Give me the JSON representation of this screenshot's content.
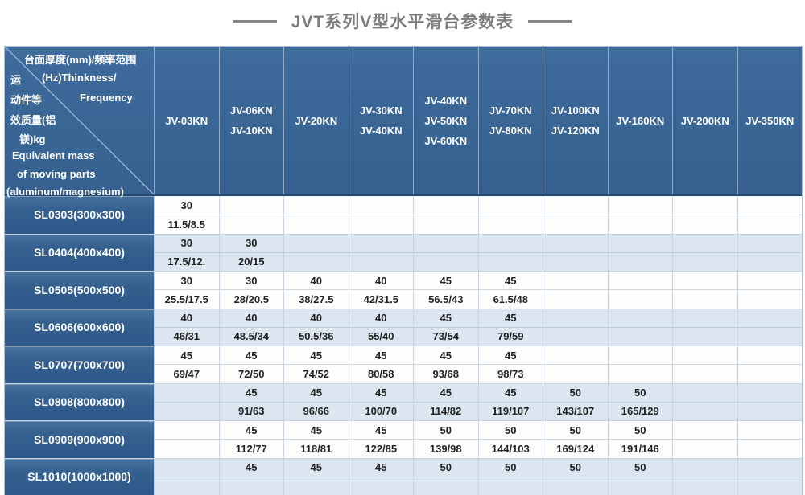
{
  "title": "JVT系列V型水平滑台参数表",
  "colors": {
    "header_blue": "#3A6795",
    "row_label_blue": "#35608F",
    "stripe_blue": "#DCE6F1",
    "stripe_white": "#FFFFFF",
    "title_gray": "#7D7D7D",
    "header_divider": "#26486E",
    "grid_line": "#C9D4E2",
    "data_text": "#222222"
  },
  "chart_data": {
    "type": "table",
    "title": "JVT系列V型水平滑台参数表",
    "corner_lines": [
      "台面厚度(mm)/频率范围",
      "运",
      "(Hz)Thinkness/",
      "动件等",
      "Frequency",
      "效质量(铝",
      "镁)kg",
      "Equivalent mass",
      "of moving parts",
      "(aluminum/magnesium)"
    ],
    "corner_meaning": {
      "top_right": "台面厚度(mm)/频率范围(Hz) Thinkness/Frequency",
      "bottom_left": "运动件等效质量(铝镁)kg Equivalent mass of moving parts (aluminum/magnesium)"
    },
    "columns": [
      [
        "JV-03KN"
      ],
      [
        "JV-06KN",
        "JV-10KN"
      ],
      [
        "JV-20KN"
      ],
      [
        "JV-30KN",
        "JV-40KN"
      ],
      [
        "JV-40KN",
        "JV-50KN",
        "JV-60KN"
      ],
      [
        "JV-70KN",
        "JV-80KN"
      ],
      [
        "JV-100KN",
        "JV-120KN"
      ],
      [
        "JV-160KN"
      ],
      [
        "JV-200KN"
      ],
      [
        "JV-350KN"
      ]
    ],
    "rows": [
      {
        "label": "SL0303(300x300)",
        "cells": [
          [
            "30",
            "11.5/8.5"
          ],
          [
            "",
            ""
          ],
          [
            "",
            ""
          ],
          [
            "",
            ""
          ],
          [
            "",
            ""
          ],
          [
            "",
            ""
          ],
          [
            "",
            ""
          ],
          [
            "",
            ""
          ],
          [
            "",
            ""
          ],
          [
            "",
            ""
          ]
        ]
      },
      {
        "label": "SL0404(400x400)",
        "cells": [
          [
            "30",
            "17.5/12."
          ],
          [
            "30",
            "20/15"
          ],
          [
            "",
            ""
          ],
          [
            "",
            ""
          ],
          [
            "",
            ""
          ],
          [
            "",
            ""
          ],
          [
            "",
            ""
          ],
          [
            "",
            ""
          ],
          [
            "",
            ""
          ],
          [
            "",
            ""
          ]
        ]
      },
      {
        "label": "SL0505(500x500)",
        "cells": [
          [
            "30",
            "25.5/17.5"
          ],
          [
            "30",
            "28/20.5"
          ],
          [
            "40",
            "38/27.5"
          ],
          [
            "40",
            "42/31.5"
          ],
          [
            "45",
            "56.5/43"
          ],
          [
            "45",
            "61.5/48"
          ],
          [
            "",
            ""
          ],
          [
            "",
            ""
          ],
          [
            "",
            ""
          ],
          [
            "",
            ""
          ]
        ]
      },
      {
        "label": "SL0606(600x600)",
        "cells": [
          [
            "40",
            "46/31"
          ],
          [
            "40",
            "48.5/34"
          ],
          [
            "40",
            "50.5/36"
          ],
          [
            "40",
            "55/40"
          ],
          [
            "45",
            "73/54"
          ],
          [
            "45",
            "79/59"
          ],
          [
            "",
            ""
          ],
          [
            "",
            ""
          ],
          [
            "",
            ""
          ],
          [
            "",
            ""
          ]
        ]
      },
      {
        "label": "SL0707(700x700)",
        "cells": [
          [
            "45",
            "69/47"
          ],
          [
            "45",
            "72/50"
          ],
          [
            "45",
            "74/52"
          ],
          [
            "45",
            "80/58"
          ],
          [
            "45",
            "93/68"
          ],
          [
            "45",
            "98/73"
          ],
          [
            "",
            ""
          ],
          [
            "",
            ""
          ],
          [
            "",
            ""
          ],
          [
            "",
            ""
          ]
        ]
      },
      {
        "label": "SL0808(800x800)",
        "cells": [
          [
            "",
            ""
          ],
          [
            "45",
            "91/63"
          ],
          [
            "45",
            "96/66"
          ],
          [
            "45",
            "100/70"
          ],
          [
            "45",
            "114/82"
          ],
          [
            "45",
            "119/107"
          ],
          [
            "50",
            "143/107"
          ],
          [
            "50",
            "165/129"
          ],
          [
            "",
            ""
          ],
          [
            "",
            ""
          ]
        ]
      },
      {
        "label": "SL0909(900x900)",
        "cells": [
          [
            "",
            ""
          ],
          [
            "45",
            "112/77"
          ],
          [
            "45",
            "118/81"
          ],
          [
            "45",
            "122/85"
          ],
          [
            "50",
            "139/98"
          ],
          [
            "50",
            "144/103"
          ],
          [
            "50",
            "169/124"
          ],
          [
            "50",
            "191/146"
          ],
          [
            "",
            ""
          ],
          [
            "",
            ""
          ]
        ]
      },
      {
        "label": "SL1010(1000x1000)",
        "cells": [
          [
            "",
            ""
          ],
          [
            "45",
            ""
          ],
          [
            "45",
            ""
          ],
          [
            "45",
            ""
          ],
          [
            "50",
            ""
          ],
          [
            "50",
            ""
          ],
          [
            "50",
            ""
          ],
          [
            "50",
            ""
          ],
          [
            "",
            ""
          ],
          [
            "",
            ""
          ]
        ]
      }
    ]
  }
}
